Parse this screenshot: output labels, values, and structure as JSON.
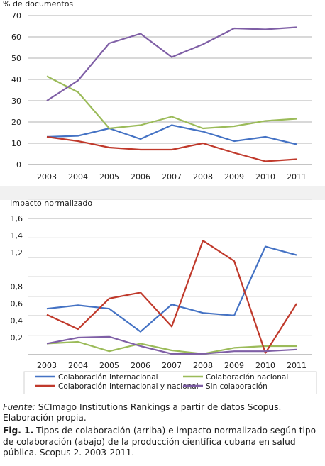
{
  "colors": {
    "internacional": "#4472c4",
    "nacional": "#9bbb59",
    "int_nacional": "#c0392b",
    "sin": "#7f5fa6",
    "grid": "#b0b0b0",
    "band": "#f1f1f1"
  },
  "chart_data": [
    {
      "type": "line",
      "ylabel": "% de documentos",
      "categories": [
        "2003",
        "2004",
        "2005",
        "2006",
        "2007",
        "2008",
        "2009",
        "2010",
        "2011"
      ],
      "ylim": [
        0,
        70
      ],
      "yticks": [
        "0",
        "10",
        "20",
        "30",
        "40",
        "50",
        "60",
        "70"
      ],
      "series": [
        {
          "key": "internacional",
          "values": [
            13,
            13.5,
            17,
            12,
            18.5,
            15.5,
            11,
            13,
            9.5
          ]
        },
        {
          "key": "nacional",
          "values": [
            41.5,
            34,
            17,
            18.5,
            22.5,
            17,
            18,
            20.5,
            21.5
          ]
        },
        {
          "key": "int_nacional",
          "values": [
            13,
            11,
            8,
            7,
            7,
            10,
            5.5,
            1.5,
            2.5
          ]
        },
        {
          "key": "sin",
          "values": [
            30,
            39.5,
            57,
            61.5,
            50.5,
            56.5,
            64,
            63.5,
            64.5
          ]
        }
      ]
    },
    {
      "type": "line",
      "ylabel": "Impacto normalizado",
      "categories": [
        "2003",
        "2004",
        "2005",
        "2006",
        "2007",
        "2008",
        "2009",
        "2010",
        "2011"
      ],
      "ylim": [
        0,
        1.6
      ],
      "yticks": [
        "0,2",
        "0,4",
        "0,6",
        "0,8",
        "",
        "1,2",
        "1,4",
        "1,6"
      ],
      "series": [
        {
          "key": "internacional",
          "name": "Colaboración internacional",
          "values": [
            0.54,
            0.58,
            0.54,
            0.27,
            0.59,
            0.49,
            0.46,
            1.27,
            1.17
          ]
        },
        {
          "key": "nacional",
          "name": "Colaboración nacional",
          "values": [
            0.13,
            0.15,
            0.04,
            0.13,
            0.05,
            0.01,
            0.08,
            0.1,
            0.1
          ]
        },
        {
          "key": "int_nacional",
          "name": "Colaboración internacional y nacional",
          "values": [
            0.47,
            0.3,
            0.66,
            0.73,
            0.33,
            1.34,
            1.1,
            0.02,
            0.6
          ]
        },
        {
          "key": "sin",
          "name": "Sin colaboración",
          "values": [
            0.13,
            0.2,
            0.21,
            0.1,
            0.01,
            0.01,
            0.04,
            0.04,
            0.06
          ]
        }
      ]
    }
  ],
  "source": {
    "label": "Fuente:",
    "text": " SCImago Institutions Rankings a partir de datos Scopus. Elaboración propia."
  },
  "caption": {
    "label": "Fig. 1.",
    "text": " Tipos de colaboración (arriba) e impacto normalizado según tipo de colaboración (abajo) de la producción científica cubana en salud pública. Scopus 2. 2003-2011."
  }
}
